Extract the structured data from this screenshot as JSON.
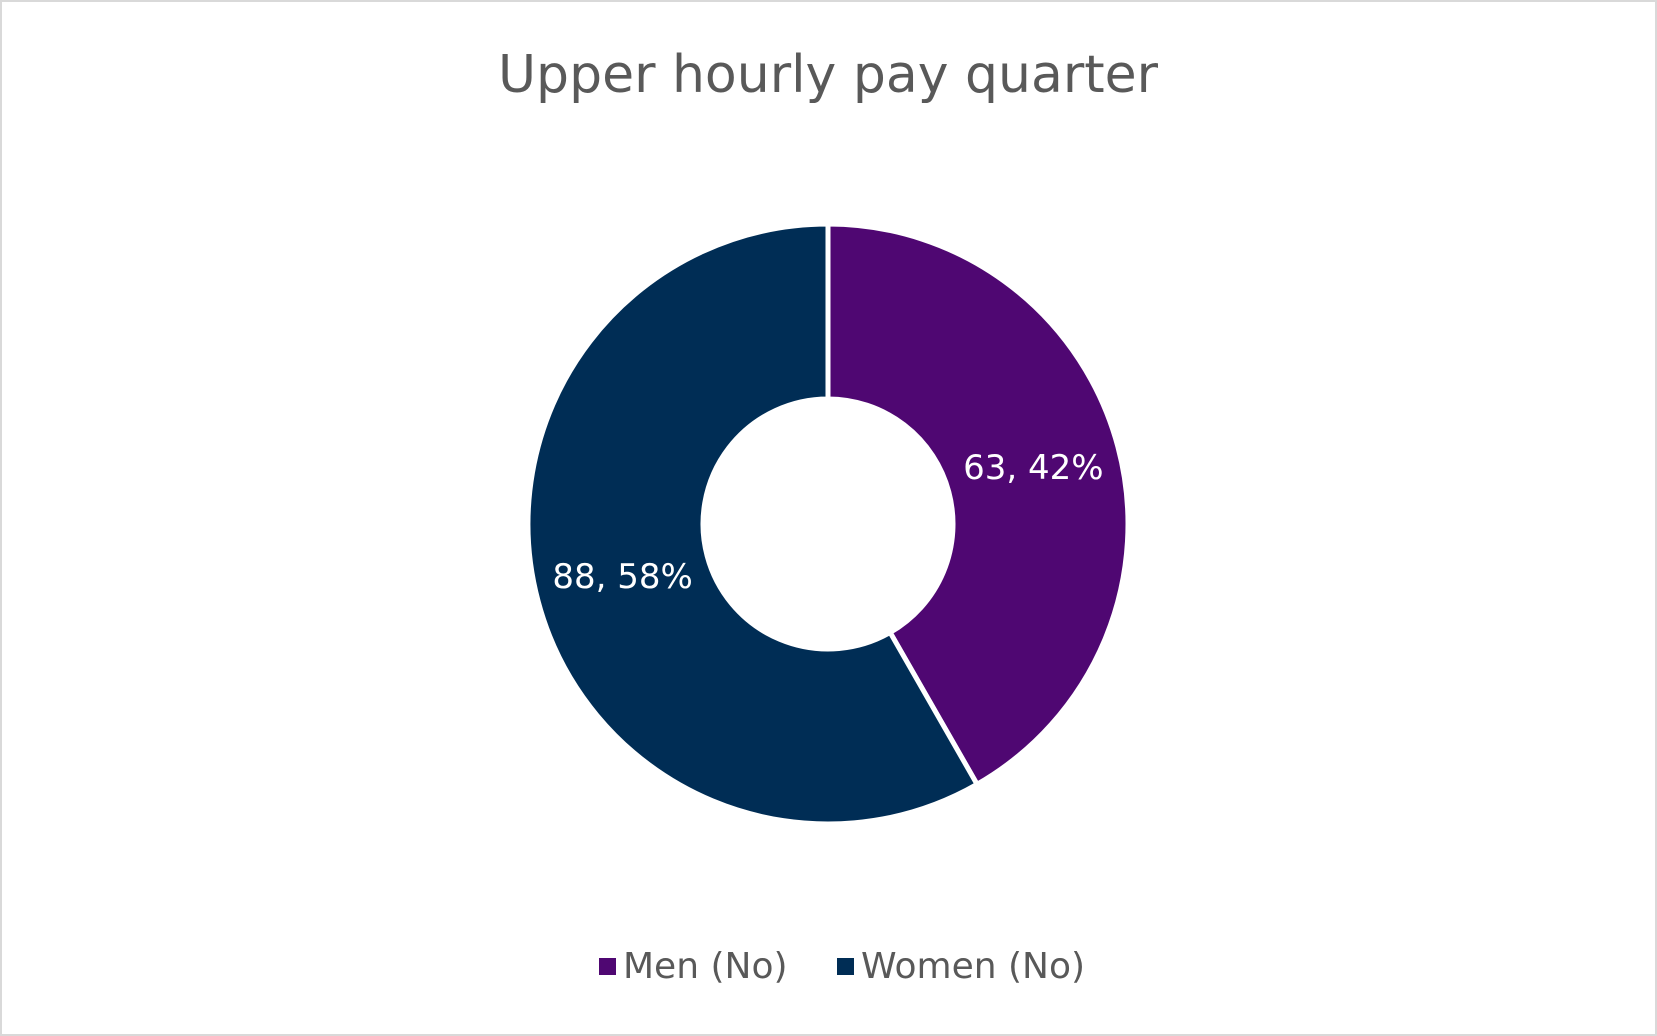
{
  "chart_data": {
    "type": "donut",
    "title": "Upper hourly pay quarter",
    "categories": [
      "Men (No)",
      "Women (No)"
    ],
    "values": [
      63,
      88
    ],
    "value_labels": [
      "63, 42%",
      "88, 58%"
    ],
    "colors": [
      "#4f0772",
      "#002d55"
    ],
    "legend": "bottom"
  }
}
